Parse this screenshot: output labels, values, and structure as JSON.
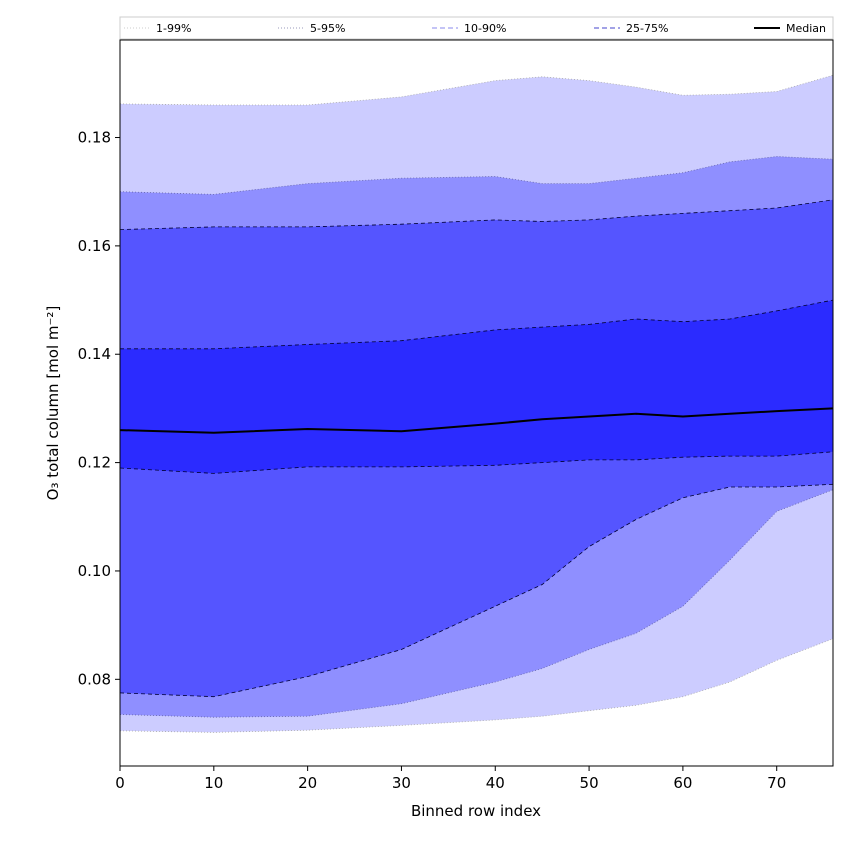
{
  "chart_data": {
    "type": "area",
    "title": "",
    "xlabel": "Binned row index",
    "ylabel": "O₃ total column [mol m⁻²]",
    "xlim": [
      0,
      76
    ],
    "ylim": [
      0.064,
      0.198
    ],
    "xticks": [
      0,
      10,
      20,
      30,
      40,
      50,
      60,
      70
    ],
    "xtick_labels": [
      "0",
      "10",
      "20",
      "30",
      "40",
      "50",
      "60",
      "70"
    ],
    "yticks": [
      0.08,
      0.1,
      0.12,
      0.14,
      0.16,
      0.18
    ],
    "ytick_labels": [
      "0.08",
      "0.10",
      "0.12",
      "0.14",
      "0.16",
      "0.18"
    ],
    "grid": false,
    "legend_position": "top",
    "x": [
      0,
      10,
      20,
      30,
      40,
      45,
      50,
      55,
      60,
      65,
      70,
      76
    ],
    "bands": [
      {
        "name": "1-99%",
        "fill": "#ccccff",
        "line_style": "dotted",
        "line_color": "#aaaaaa",
        "lower": [
          0.0705,
          0.0702,
          0.0706,
          0.0715,
          0.0725,
          0.0732,
          0.0742,
          0.0752,
          0.0768,
          0.0795,
          0.0835,
          0.0875
        ],
        "upper": [
          0.1862,
          0.186,
          0.186,
          0.1875,
          0.1905,
          0.1912,
          0.1905,
          0.1893,
          0.1878,
          0.188,
          0.1885,
          0.1915
        ]
      },
      {
        "name": "5-95%",
        "fill": "#8f8fff",
        "line_style": "dotted",
        "line_color": "#6666aa",
        "lower": [
          0.0735,
          0.073,
          0.0732,
          0.0755,
          0.0795,
          0.082,
          0.0855,
          0.0885,
          0.0935,
          0.102,
          0.111,
          0.115
        ],
        "upper": [
          0.17,
          0.1695,
          0.1715,
          0.1725,
          0.1728,
          0.1715,
          0.1715,
          0.1725,
          0.1735,
          0.1755,
          0.1765,
          0.176
        ]
      },
      {
        "name": "10-90%",
        "fill": "#5555ff",
        "line_style": "dashed",
        "line_color": "#000033",
        "lower": [
          0.0775,
          0.0768,
          0.0805,
          0.0855,
          0.0935,
          0.0975,
          0.1045,
          0.1095,
          0.1135,
          0.1155,
          0.1155,
          0.116
        ],
        "upper": [
          0.163,
          0.1635,
          0.1635,
          0.164,
          0.1648,
          0.1645,
          0.1648,
          0.1655,
          0.166,
          0.1665,
          0.167,
          0.1685
        ]
      },
      {
        "name": "25-75%",
        "fill": "#2b2bff",
        "line_style": "dashed",
        "line_color": "#000033",
        "lower": [
          0.119,
          0.118,
          0.1192,
          0.1192,
          0.1195,
          0.12,
          0.1205,
          0.1205,
          0.121,
          0.1212,
          0.1212,
          0.122
        ],
        "upper": [
          0.141,
          0.141,
          0.1418,
          0.1425,
          0.1445,
          0.145,
          0.1455,
          0.1465,
          0.146,
          0.1465,
          0.148,
          0.15
        ]
      }
    ],
    "median": {
      "name": "Median",
      "color": "#000000",
      "values": [
        0.126,
        0.1255,
        0.1262,
        0.1258,
        0.1272,
        0.128,
        0.1285,
        0.129,
        0.1285,
        0.129,
        0.1295,
        0.13
      ]
    },
    "legend": [
      {
        "label": "1-99%",
        "color": "#cccccc",
        "dash": "1,2"
      },
      {
        "label": "5-95%",
        "color": "#9999bb",
        "dash": "1,2"
      },
      {
        "label": "10-90%",
        "color": "#8888ee",
        "dash": "5,3"
      },
      {
        "label": "25-75%",
        "color": "#4444cc",
        "dash": "5,3"
      },
      {
        "label": "Median",
        "color": "#000000",
        "dash": ""
      }
    ]
  }
}
